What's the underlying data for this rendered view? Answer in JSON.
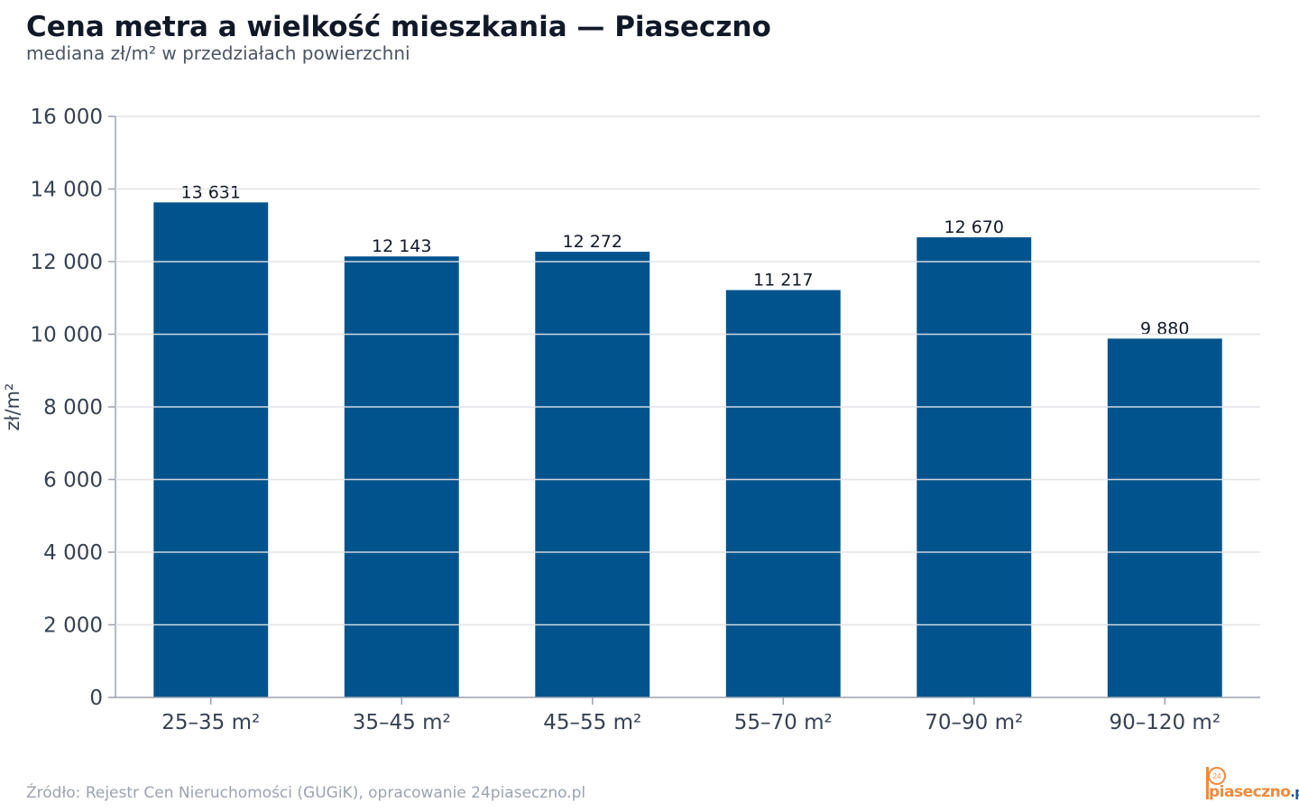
{
  "header": {
    "title": "Cena metra a wielkość mieszkania — Piaseczno",
    "subtitle": "mediana zł/m² w przedziałach powierzchni"
  },
  "footer": {
    "source": "Źródło: Rejestr Cen Nieruchomości (GUGiK), opracowanie 24piaseczno.pl",
    "logo_badge": "24",
    "logo_name": "piaseczno",
    "logo_tld": ".pl"
  },
  "colors": {
    "bar": "#00538c",
    "grid": "#e5e7eb",
    "axis": "#9ca3af",
    "tick_text": "#374151",
    "value_text": "#111827",
    "logo_orange": "#f08a3c",
    "logo_blue": "#1f4e8c"
  },
  "chart_data": {
    "type": "bar",
    "title": "Cena metra a wielkość mieszkania — Piaseczno",
    "subtitle": "mediana zł/m² w przedziałach powierzchni",
    "xlabel": "",
    "ylabel": "zł/m²",
    "categories": [
      "25–35 m²",
      "35–45 m²",
      "45–55 m²",
      "55–70 m²",
      "70–90 m²",
      "90–120 m²"
    ],
    "values": [
      13631,
      12143,
      12272,
      11217,
      12670,
      9880
    ],
    "value_labels": [
      "13 631",
      "12 143",
      "12 272",
      "11 217",
      "12 670",
      "9 880"
    ],
    "ylim": [
      0,
      16000
    ],
    "yticks": [
      0,
      2000,
      4000,
      6000,
      8000,
      10000,
      12000,
      14000,
      16000
    ],
    "ytick_labels": [
      "0",
      "2 000",
      "4 000",
      "6 000",
      "8 000",
      "10 000",
      "12 000",
      "14 000",
      "16 000"
    ],
    "grid": true,
    "legend": "none"
  }
}
